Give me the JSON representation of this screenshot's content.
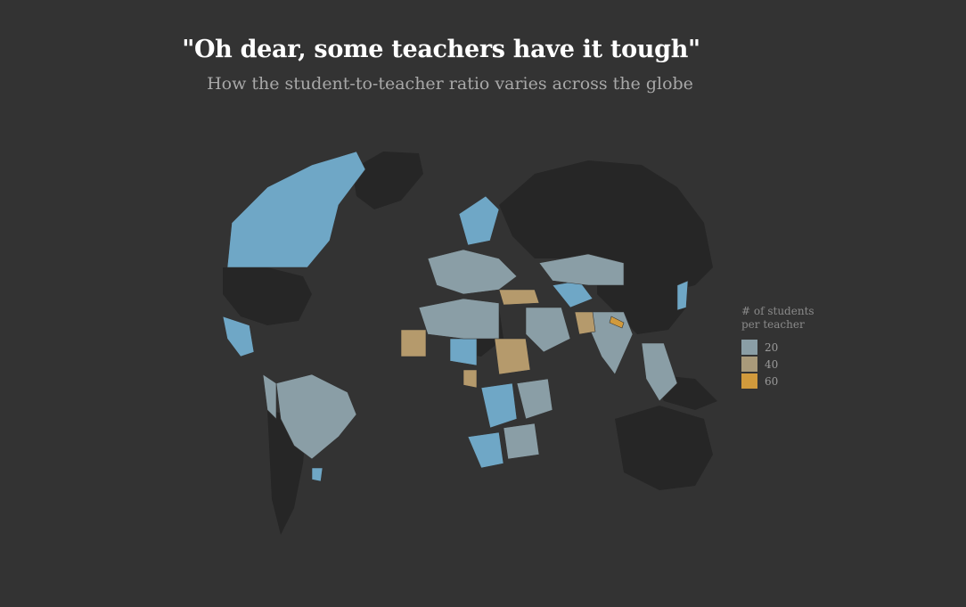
{
  "title": "\"Oh dear, some teachers have it tough\"",
  "subtitle": "How the student-to-teacher ratio varies across the globe",
  "legend": {
    "title_line1": "# of students",
    "title_line2": "per teacher",
    "items": [
      {
        "label": "20",
        "color": "#8a9ea6"
      },
      {
        "label": "40",
        "color": "#a99a7a"
      },
      {
        "label": "60",
        "color": "#d19a3c"
      }
    ]
  },
  "colors": {
    "background": "#333333",
    "land_nodata": "#262626",
    "low_ratio": "#6fa7c6",
    "mid_ratio": "#8a9ea6",
    "high_ratio": "#b59a6c",
    "very_high_ratio": "#d19a3c"
  }
}
